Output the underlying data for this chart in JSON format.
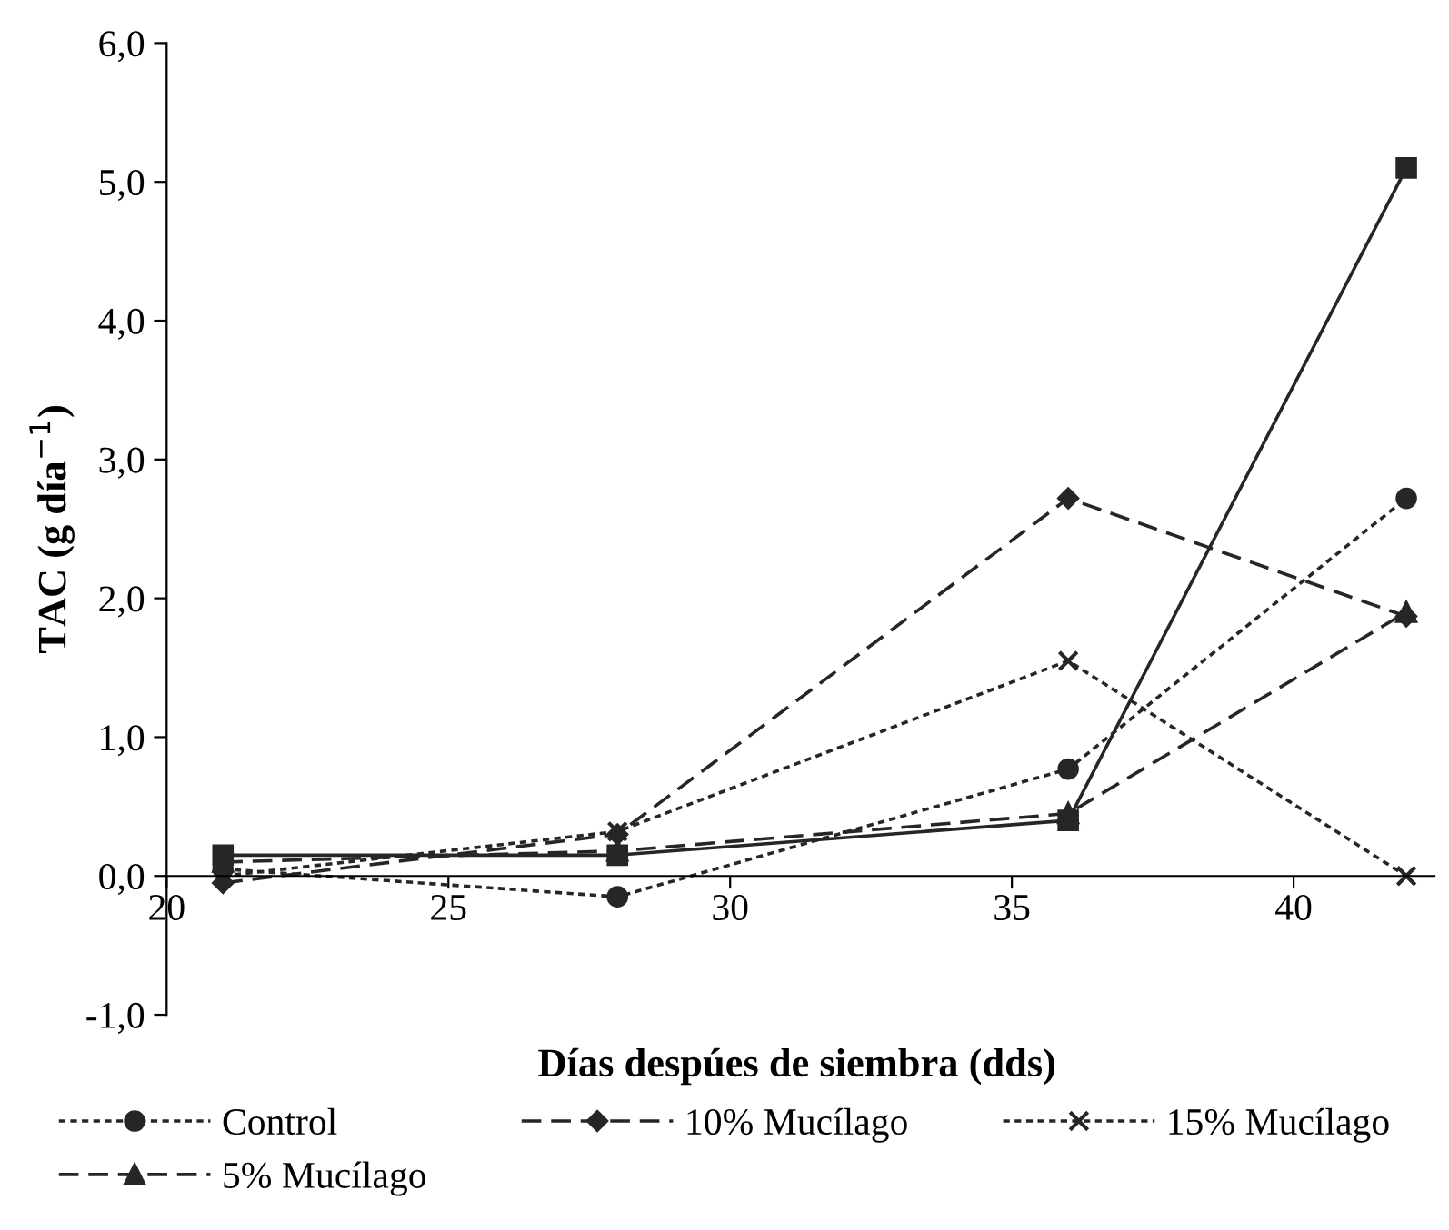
{
  "chart_data": {
    "type": "line",
    "xlabel": "Días despúes de siembra (dds)",
    "ylabel": "TAC (g día$^{−1}$)",
    "x": [
      21,
      28,
      36,
      42
    ],
    "series": [
      {
        "name": "Control",
        "color": "#262626",
        "values": [
          0.05,
          -0.15,
          0.77,
          2.72
        ],
        "marker": "circle",
        "line_style": "dotted"
      },
      {
        "color": "#262626",
        "values": [
          0.15,
          0.15,
          0.4,
          5.1
        ],
        "marker": "square",
        "line_style": "solid"
      },
      {
        "name": "5% Mucílago",
        "color": "#262626",
        "values": [
          0.1,
          0.18,
          0.45,
          1.9
        ],
        "marker": "triangle",
        "line_style": "dashed"
      },
      {
        "name": "10% Mucílago",
        "color": "#262626",
        "values": [
          -0.05,
          0.3,
          2.72,
          1.87
        ],
        "marker": "diamond",
        "line_style": "dashed"
      },
      {
        "name": "15% Mucílago",
        "color": "#262626",
        "values": [
          0.0,
          0.32,
          1.55,
          0.0
        ],
        "marker": "cross",
        "line_style": "dotted"
      }
    ],
    "xlim": [
      20,
      42.5
    ],
    "xticks": [
      20,
      25,
      30,
      35,
      40
    ],
    "ylim": [
      -1,
      6
    ],
    "yticks": [
      {
        "value": -1,
        "label": "-1,0"
      },
      {
        "value": 0,
        "label": "0,0"
      },
      {
        "value": 1,
        "label": "1,0"
      },
      {
        "value": 2,
        "label": "2,0"
      },
      {
        "value": 3,
        "label": "3,0"
      },
      {
        "value": 4,
        "label": "4,0"
      },
      {
        "value": 5,
        "label": "5,0"
      },
      {
        "value": 6,
        "label": "6,0"
      }
    ],
    "grid": false,
    "legend": "bottom"
  }
}
